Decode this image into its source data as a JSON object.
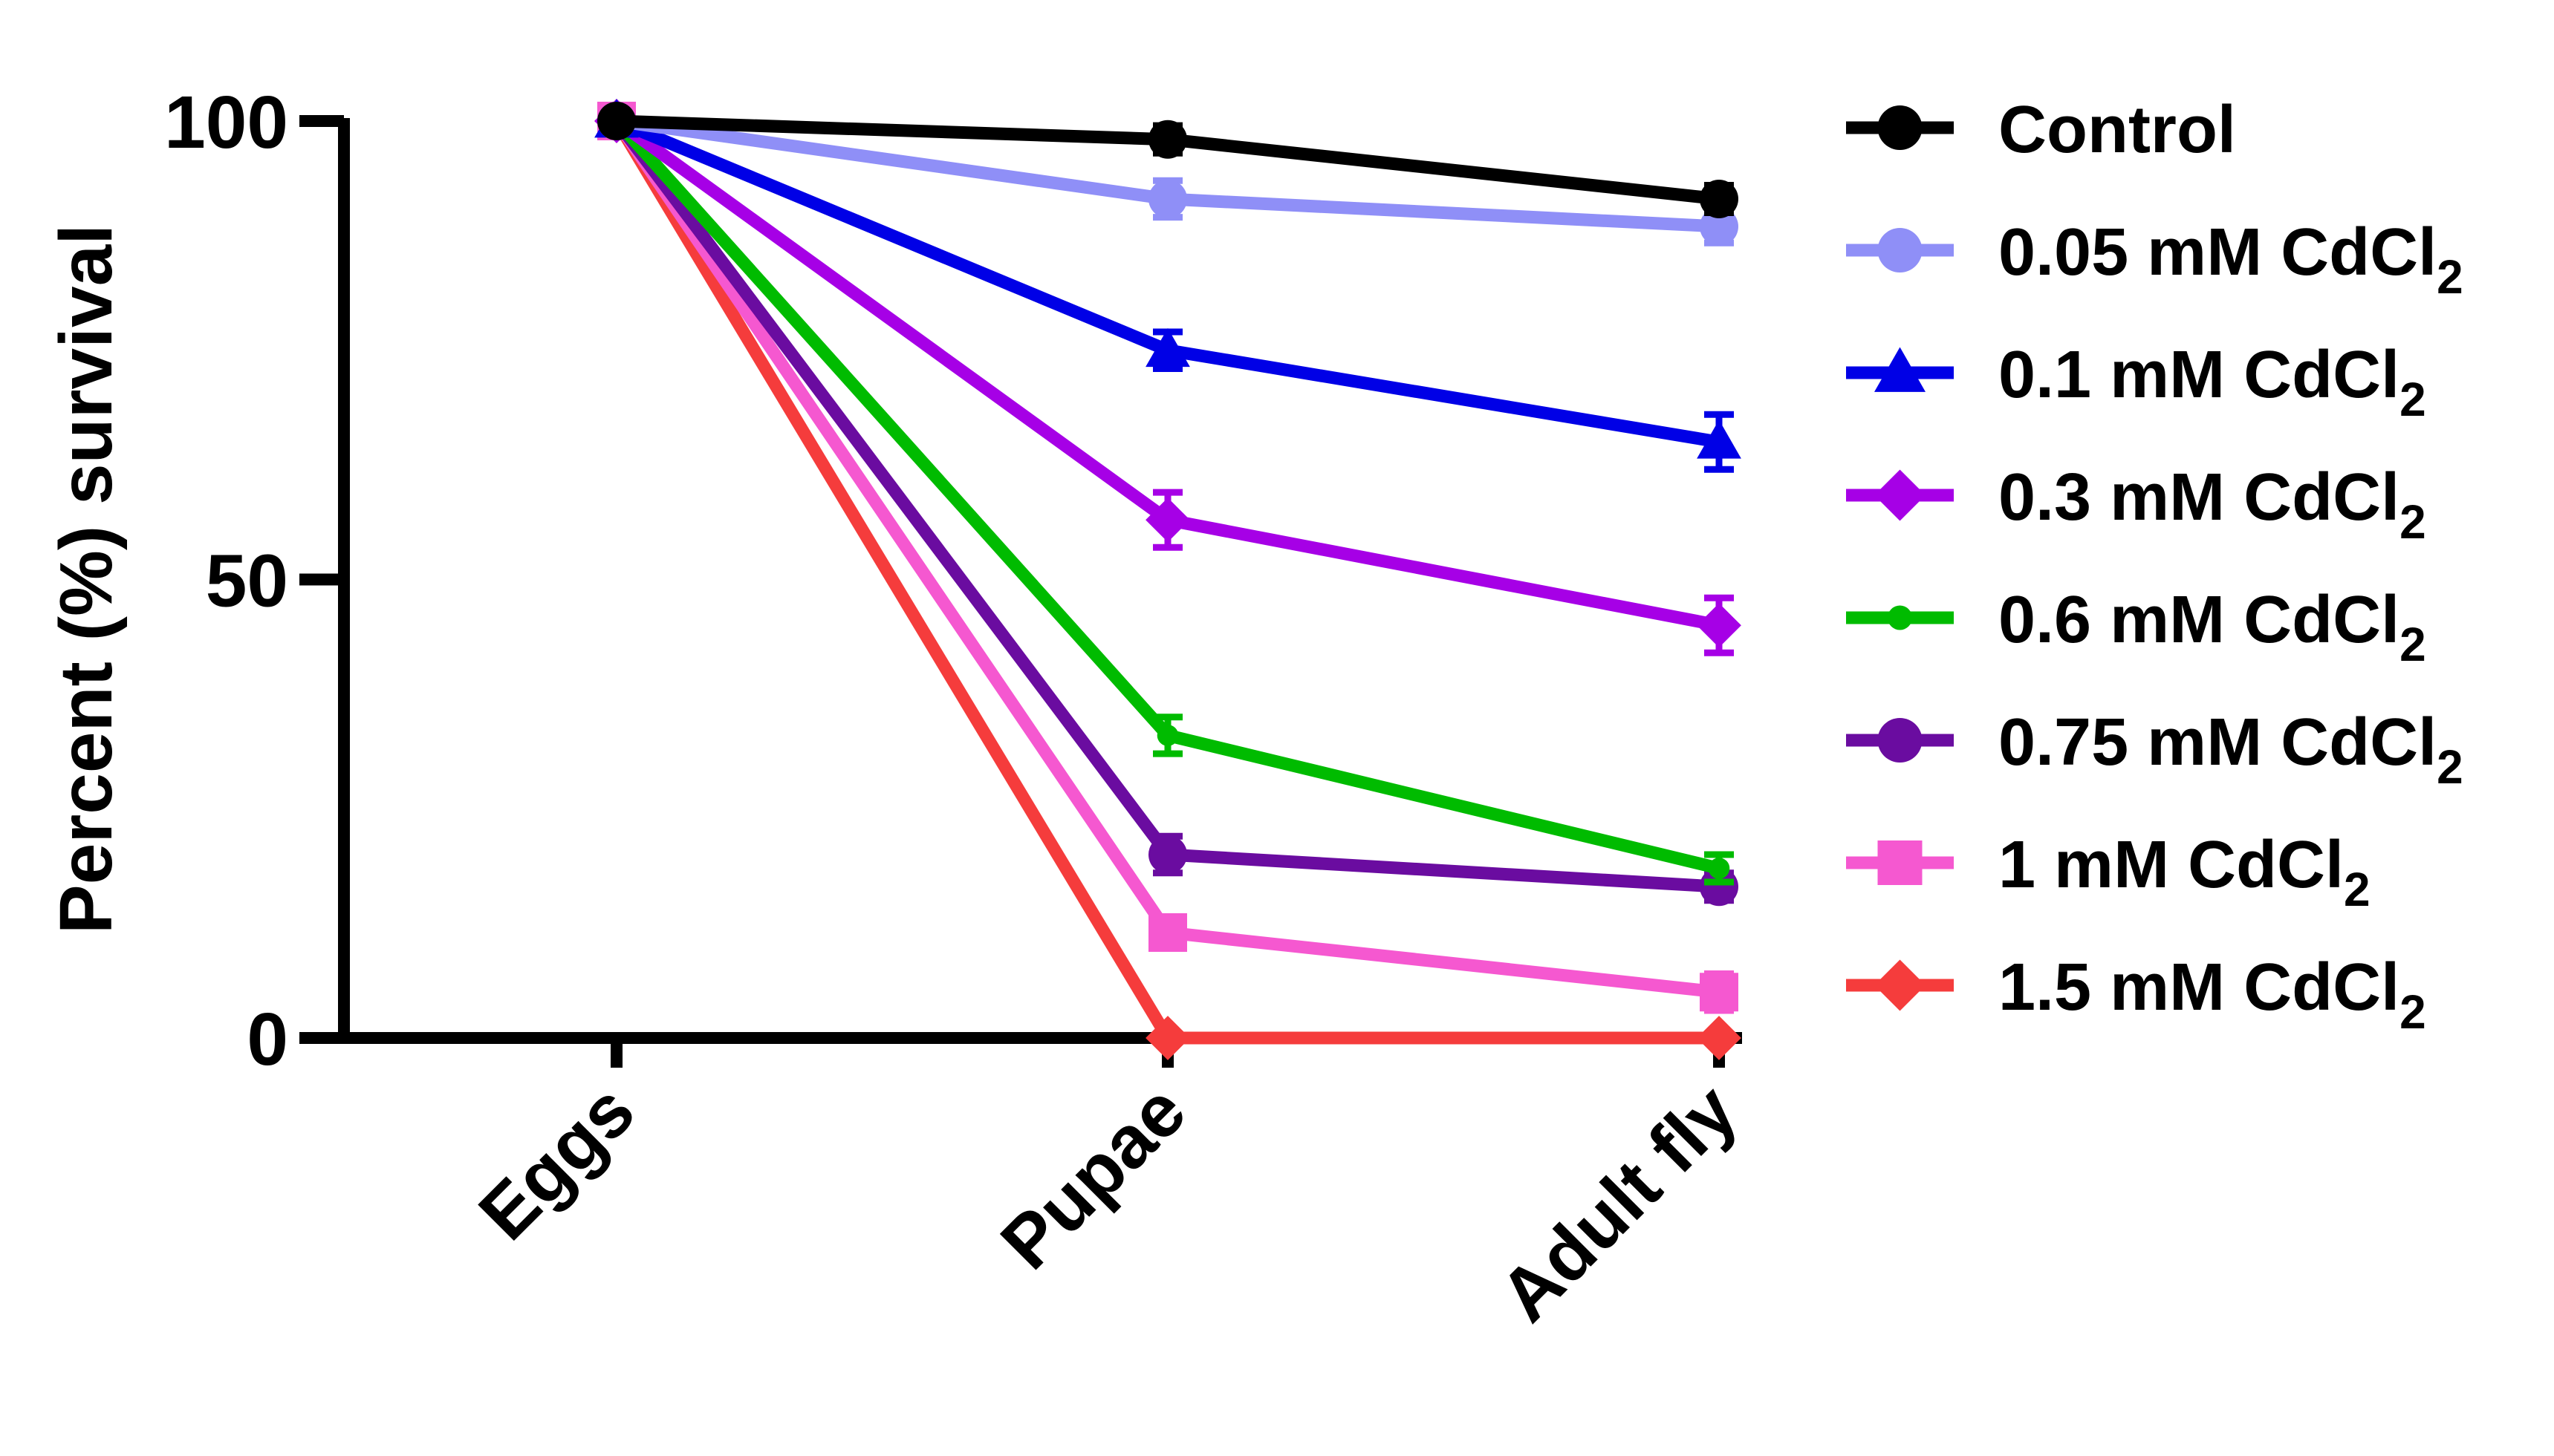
{
  "chart_data": {
    "type": "line",
    "categories": [
      "Eggs",
      "Pupae",
      "Adult fly"
    ],
    "ylabel": "Percent (%) survival",
    "ylim": [
      0,
      100
    ],
    "yticks": [
      0,
      50,
      100
    ],
    "grid": false,
    "legend_position": "right",
    "series": [
      {
        "name": "Control",
        "base": "Control",
        "sub": "",
        "color": "#000000",
        "marker": "circle",
        "values": [
          100,
          98,
          91.5
        ],
        "err": [
          0,
          1.5,
          1.5
        ]
      },
      {
        "name": "0.05 mM CdCl2",
        "base": "0.05 mM CdCl",
        "sub": "2",
        "color": "#8f8ff7",
        "marker": "circle",
        "values": [
          100,
          91.5,
          88.5
        ],
        "err": [
          0,
          2,
          1.8
        ]
      },
      {
        "name": "0.1 mM CdCl2",
        "base": "0.1 mM CdCl",
        "sub": "2",
        "color": "#0000e6",
        "marker": "triangle",
        "values": [
          100,
          75,
          65
        ],
        "err": [
          0,
          2,
          3
        ]
      },
      {
        "name": "0.3 mM CdCl2",
        "base": "0.3 mM CdCl",
        "sub": "2",
        "color": "#a600e6",
        "marker": "diamond",
        "values": [
          100,
          56.5,
          45
        ],
        "err": [
          0,
          3,
          3
        ]
      },
      {
        "name": "0.6 mM CdCl2",
        "base": "0.6 mM CdCl",
        "sub": "2",
        "color": "#00bb00",
        "marker": "dot",
        "values": [
          100,
          33,
          18.5
        ],
        "err": [
          0,
          2,
          1.5
        ]
      },
      {
        "name": "0.75 mM CdCl2",
        "base": "0.75 mM CdCl",
        "sub": "2",
        "color": "#6a0ca0",
        "marker": "circle",
        "values": [
          100,
          20,
          16.5
        ],
        "err": [
          0,
          2,
          1.5
        ]
      },
      {
        "name": "1 mM CdCl2",
        "base": "1 mM CdCl",
        "sub": "2",
        "color": "#f558d0",
        "marker": "square",
        "values": [
          100,
          11.5,
          5
        ],
        "err": [
          0,
          1.5,
          2
        ]
      },
      {
        "name": "1.5 mM CdCl2",
        "base": "1.5 mM CdCl",
        "sub": "2",
        "color": "#f53c3c",
        "marker": "diamond",
        "values": [
          100,
          0,
          0
        ],
        "err": [
          0,
          0,
          0
        ]
      }
    ]
  }
}
